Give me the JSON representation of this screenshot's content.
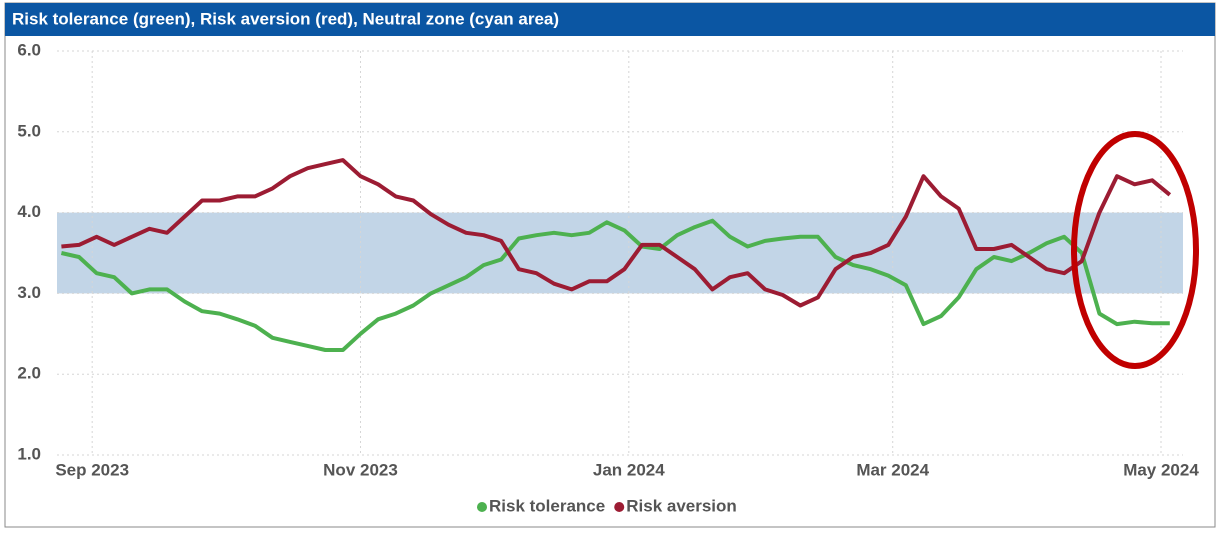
{
  "chart_data": {
    "type": "line",
    "title": "Risk tolerance (green), Risk aversion (red), Neutral zone (cyan area)",
    "x": [
      -7,
      -3,
      1,
      5,
      9,
      13,
      17,
      21,
      25,
      29,
      33,
      37,
      41,
      45,
      49,
      53,
      57,
      61,
      65,
      69,
      73,
      77,
      81,
      85,
      89,
      93,
      97,
      101,
      105,
      109,
      113,
      117,
      121,
      125,
      129,
      133,
      137,
      141,
      145,
      149,
      153,
      157,
      161,
      165,
      169,
      173,
      177,
      181,
      185,
      189,
      193,
      197,
      201,
      205,
      209,
      213,
      217,
      221,
      225,
      229,
      233,
      237,
      241,
      245
    ],
    "xlim": [
      -8,
      248
    ],
    "xticks": [
      {
        "value": 0,
        "label": "Sep 2023"
      },
      {
        "value": 61,
        "label": "Nov 2023"
      },
      {
        "value": 122,
        "label": "Jan 2024"
      },
      {
        "value": 182,
        "label": "Mar 2024"
      },
      {
        "value": 243,
        "label": "May 2024"
      }
    ],
    "ylim": [
      1,
      6
    ],
    "yticks": [
      {
        "value": 1,
        "label": "1.0"
      },
      {
        "value": 2,
        "label": "2.0"
      },
      {
        "value": 3,
        "label": "3.0"
      },
      {
        "value": 4,
        "label": "4.0"
      },
      {
        "value": 5,
        "label": "5.0"
      },
      {
        "value": 6,
        "label": "6.0"
      }
    ],
    "grid": true,
    "band": {
      "range": [
        3,
        4
      ],
      "color": "#c2d5e7"
    },
    "series": [
      {
        "name": "Risk tolerance",
        "color": "#4db14f",
        "values": [
          3.5,
          3.45,
          3.25,
          3.2,
          3.0,
          3.05,
          3.05,
          2.9,
          2.78,
          2.75,
          2.68,
          2.6,
          2.45,
          2.4,
          2.35,
          2.3,
          2.3,
          2.5,
          2.68,
          2.75,
          2.85,
          3.0,
          3.1,
          3.2,
          3.35,
          3.42,
          3.68,
          3.72,
          3.75,
          3.72,
          3.75,
          3.88,
          3.78,
          3.58,
          3.55,
          3.72,
          3.82,
          3.9,
          3.7,
          3.58,
          3.65,
          3.68,
          3.7,
          3.7,
          3.45,
          3.35,
          3.3,
          3.22,
          3.1,
          2.62,
          2.72,
          2.95,
          3.3,
          3.45,
          3.4,
          3.5,
          3.62,
          3.7,
          3.5,
          2.75,
          2.62,
          2.65,
          2.63,
          2.63
        ]
      },
      {
        "name": "Risk aversion",
        "color": "#9c1c33",
        "values": [
          3.58,
          3.6,
          3.7,
          3.6,
          3.7,
          3.8,
          3.75,
          3.95,
          4.15,
          4.15,
          4.2,
          4.2,
          4.3,
          4.45,
          4.55,
          4.6,
          4.65,
          4.45,
          4.35,
          4.2,
          4.15,
          3.98,
          3.85,
          3.75,
          3.72,
          3.65,
          3.3,
          3.25,
          3.12,
          3.05,
          3.15,
          3.15,
          3.3,
          3.6,
          3.6,
          3.45,
          3.3,
          3.05,
          3.2,
          3.25,
          3.05,
          2.98,
          2.85,
          2.95,
          3.3,
          3.45,
          3.5,
          3.6,
          3.95,
          4.45,
          4.2,
          4.05,
          3.55,
          3.55,
          3.6,
          3.45,
          3.3,
          3.25,
          3.4,
          4.0,
          4.45,
          4.35,
          4.4,
          4.22
        ]
      }
    ]
  }
}
